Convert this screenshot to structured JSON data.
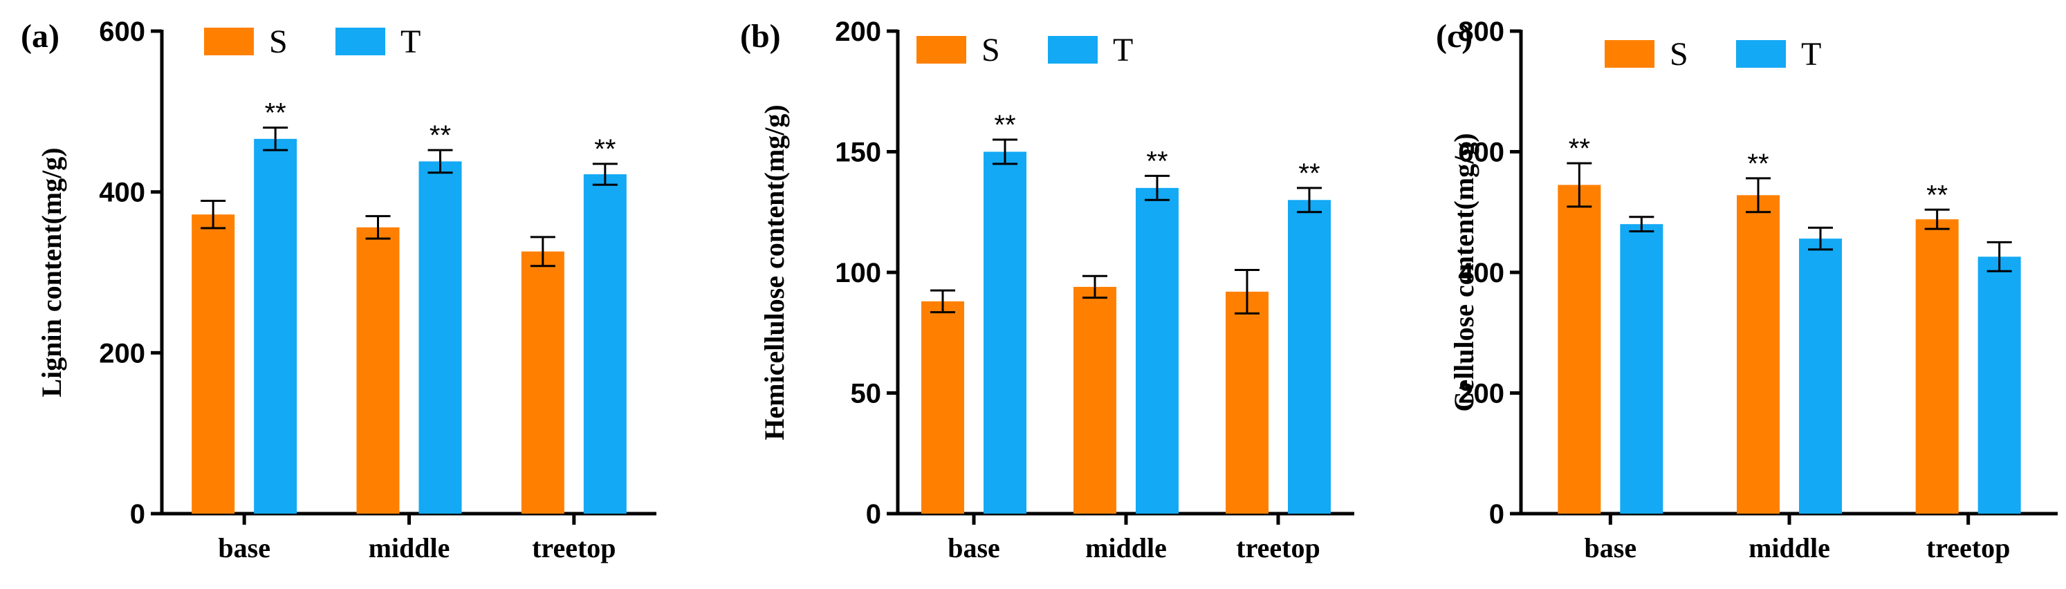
{
  "colors": {
    "S": "#ff8000",
    "T": "#13a9f5"
  },
  "chart_data": [
    {
      "type": "bar",
      "panel": "(a)",
      "title": "",
      "ylabel": "Lignin content(mg/g)",
      "xlabel": "",
      "categories": [
        "base",
        "middle",
        "treetop"
      ],
      "ylim": [
        0,
        600
      ],
      "yticks": [
        0,
        200,
        400,
        600
      ],
      "legend": "top-left",
      "grid": false,
      "series": [
        {
          "name": "S",
          "values": [
            372,
            356,
            326
          ],
          "errors": [
            17,
            14,
            18
          ],
          "sig": [
            "",
            "",
            ""
          ]
        },
        {
          "name": "T",
          "values": [
            466,
            438,
            422
          ],
          "errors": [
            14,
            14,
            13
          ],
          "sig": [
            "**",
            "**",
            "**"
          ]
        }
      ]
    },
    {
      "type": "bar",
      "panel": "(b)",
      "title": "",
      "ylabel": "Hemicellulose content(mg/g)",
      "xlabel": "",
      "categories": [
        "base",
        "middle",
        "treetop"
      ],
      "ylim": [
        0,
        200
      ],
      "yticks": [
        0,
        50,
        100,
        150,
        200
      ],
      "legend": "top-left",
      "grid": false,
      "series": [
        {
          "name": "S",
          "values": [
            88,
            94,
            92
          ],
          "errors": [
            4.5,
            4.5,
            9
          ],
          "sig": [
            "",
            "",
            ""
          ]
        },
        {
          "name": "T",
          "values": [
            150,
            135,
            130
          ],
          "errors": [
            5,
            5,
            5
          ],
          "sig": [
            "**",
            "**",
            "**"
          ]
        }
      ]
    },
    {
      "type": "bar",
      "panel": "(c)",
      "title": "",
      "ylabel": "Cellulose content(mg/g)",
      "xlabel": "",
      "categories": [
        "base",
        "middle",
        "treetop"
      ],
      "ylim": [
        0,
        800
      ],
      "yticks": [
        0,
        200,
        400,
        600,
        800
      ],
      "legend": "top-left",
      "grid": false,
      "series": [
        {
          "name": "S",
          "values": [
            545,
            528,
            488
          ],
          "errors": [
            36,
            28,
            16
          ],
          "sig": [
            "**",
            "**",
            "**"
          ]
        },
        {
          "name": "T",
          "values": [
            480,
            456,
            426
          ],
          "errors": [
            12,
            18,
            24
          ],
          "sig": [
            "",
            "",
            ""
          ]
        }
      ]
    }
  ]
}
